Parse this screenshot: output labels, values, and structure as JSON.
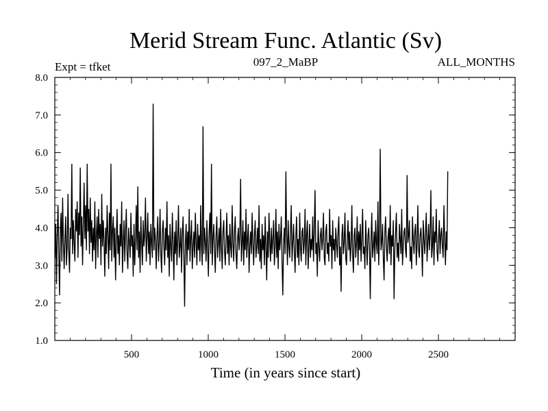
{
  "chart_data": {
    "type": "line",
    "title": "Merid Stream Func. Atlantic (Sv)",
    "annotations": {
      "left": "Expt = tfket",
      "center": "097_2_MaBP",
      "right": "ALL_MONTHS"
    },
    "xlabel": "Time (in years since start)",
    "ylabel": "",
    "xlim": [
      0,
      3000
    ],
    "ylim": [
      1.0,
      8.0
    ],
    "x_ticks": [
      500,
      1000,
      1500,
      2000,
      2500
    ],
    "x_tick_labels": [
      "500",
      "1000",
      "1500",
      "2000",
      "2500"
    ],
    "y_ticks": [
      1,
      2,
      3,
      4,
      5,
      6,
      7,
      8
    ],
    "y_tick_labels": [
      "1.0",
      "2.0",
      "3.0",
      "4.0",
      "5.0",
      "6.0",
      "7.0",
      "8.0"
    ],
    "line_color": "#000000",
    "grid": false,
    "series": [
      {
        "x_start": 1,
        "x_step": 5,
        "values": [
          3.2,
          4.1,
          2.5,
          3.8,
          4.6,
          3.3,
          2.2,
          3.9,
          4.4,
          3.1,
          4.8,
          3.6,
          2.9,
          3.7,
          4.3,
          3.0,
          3.5,
          4.9,
          3.4,
          2.8,
          4.0,
          3.7,
          5.7,
          3.3,
          4.2,
          3.6,
          3.1,
          4.5,
          3.9,
          4.7,
          3.2,
          4.4,
          3.8,
          5.6,
          3.5,
          4.3,
          3.0,
          4.1,
          5.2,
          3.7,
          4.6,
          3.4,
          5.7,
          3.9,
          4.5,
          3.3,
          4.8,
          3.6,
          4.2,
          3.1,
          4.0,
          3.4,
          4.7,
          2.9,
          3.8,
          4.3,
          3.2,
          4.5,
          3.7,
          4.1,
          3.0,
          4.9,
          3.5,
          4.2,
          3.6,
          2.7,
          4.0,
          3.3,
          4.6,
          3.8,
          2.9,
          4.4,
          3.4,
          5.7,
          3.1,
          3.9,
          4.3,
          3.2,
          4.0,
          2.6,
          3.7,
          4.5,
          3.3,
          3.8,
          3.0,
          4.1,
          3.5,
          4.7,
          2.8,
          3.6,
          4.2,
          3.1,
          3.9,
          4.5,
          3.3,
          2.9,
          4.0,
          3.6,
          3.2,
          4.4,
          3.5,
          3.8,
          2.7,
          4.1,
          3.0,
          3.7,
          4.6,
          3.4,
          5.1,
          3.2,
          3.9,
          2.8,
          4.3,
          3.6,
          3.0,
          4.2,
          3.5,
          3.8,
          4.8,
          3.1,
          3.7,
          4.4,
          3.3,
          3.9,
          3.0,
          4.1,
          3.6,
          3.2,
          7.3,
          3.4,
          4.0,
          3.7,
          2.9,
          3.8,
          4.3,
          3.1,
          3.6,
          4.5,
          3.3,
          2.8,
          3.9,
          4.2,
          3.5,
          3.0,
          4.0,
          3.4,
          4.7,
          3.2,
          3.8,
          2.7,
          4.1,
          3.5,
          3.1,
          4.4,
          3.6,
          2.6,
          3.9,
          3.3,
          4.2,
          3.0,
          3.7,
          4.6,
          3.2,
          3.5,
          4.0,
          2.8,
          3.8,
          4.3,
          3.3,
          1.9,
          3.6,
          4.1,
          3.0,
          3.9,
          3.4,
          4.5,
          3.1,
          3.7,
          4.2,
          2.9,
          3.5,
          3.9,
          3.2,
          4.4,
          3.6,
          3.0,
          4.1,
          3.4,
          3.8,
          3.1,
          4.6,
          3.5,
          3.0,
          6.7,
          3.3,
          4.0,
          3.6,
          3.1,
          4.2,
          3.5,
          2.7,
          3.9,
          4.4,
          3.3,
          5.7,
          3.0,
          3.7,
          4.1,
          3.4,
          2.8,
          3.8,
          4.3,
          3.2,
          3.6,
          4.0,
          3.1,
          4.5,
          3.5,
          2.9,
          3.9,
          4.2,
          3.4,
          3.0,
          3.7,
          4.4,
          3.3,
          3.8,
          3.0,
          4.1,
          3.5,
          3.2,
          4.6,
          3.6,
          3.1,
          3.9,
          4.3,
          3.3,
          2.9,
          3.7,
          4.0,
          3.4,
          3.8,
          5.3,
          3.1,
          3.6,
          4.2,
          3.0,
          3.9,
          3.4,
          4.5,
          3.2,
          3.7,
          4.1,
          2.8,
          3.5,
          3.9,
          3.3,
          4.4,
          3.6,
          3.0,
          3.8,
          4.2,
          3.2,
          3.5,
          4.0,
          3.3,
          4.6,
          3.1,
          3.7,
          2.9,
          4.1,
          3.4,
          3.8,
          3.0,
          4.3,
          3.5,
          2.6,
          3.9,
          3.2,
          4.4,
          3.6,
          3.1,
          4.0,
          3.3,
          3.7,
          4.2,
          3.0,
          3.5,
          4.5,
          3.2,
          3.9,
          2.9,
          4.1,
          3.4,
          3.7,
          4.3,
          3.1,
          2.2,
          3.6,
          4.0,
          3.3,
          5.5,
          3.8,
          3.0,
          4.2,
          3.5,
          3.2,
          3.9,
          4.6,
          3.1,
          3.6,
          4.1,
          3.4,
          2.8,
          3.8,
          4.3,
          3.2,
          3.7,
          3.0,
          4.4,
          3.5,
          3.1,
          3.9,
          4.0,
          3.3,
          3.6,
          4.5,
          3.0,
          3.8,
          4.2,
          2.9,
          3.5,
          4.1,
          3.2,
          3.7,
          3.4,
          4.3,
          3.1,
          3.9,
          5.0,
          3.3,
          3.6,
          2.7,
          4.2,
          3.5,
          3.1,
          3.8,
          4.0,
          3.4,
          3.7,
          4.4,
          3.2,
          3.0,
          3.9,
          4.1,
          3.3,
          3.6,
          3.1,
          4.5,
          3.5,
          3.8,
          2.9,
          4.2,
          3.4,
          3.7,
          3.1,
          4.0,
          3.6,
          3.2,
          3.9,
          4.3,
          3.0,
          3.5,
          2.3,
          3.8,
          4.1,
          3.3,
          3.6,
          4.4,
          3.2,
          3.0,
          3.7,
          4.2,
          3.4,
          3.9,
          3.1,
          3.5,
          4.6,
          3.3,
          2.8,
          3.8,
          4.0,
          3.2,
          3.6,
          4.3,
          3.0,
          3.9,
          3.4,
          4.1,
          3.1,
          3.7,
          4.5,
          3.3,
          3.5,
          2.9,
          4.2,
          3.6,
          3.0,
          3.8,
          4.0,
          3.4,
          2.1,
          3.7,
          4.4,
          3.2,
          3.5,
          3.9,
          3.1,
          4.2,
          3.6,
          3.3,
          4.7,
          3.0,
          3.8,
          6.1,
          3.4,
          3.6,
          4.1,
          3.2,
          2.6,
          3.9,
          4.3,
          3.5,
          3.1,
          3.7,
          4.0,
          3.3,
          4.6,
          3.0,
          3.8,
          3.5,
          4.2,
          2.1,
          3.4,
          3.9,
          4.4,
          3.2,
          3.6,
          3.1,
          4.1,
          3.7,
          3.3,
          4.5,
          3.0,
          3.5,
          3.9,
          4.0,
          3.4,
          3.2,
          5.4,
          3.6,
          3.8,
          4.2,
          3.1,
          3.5,
          2.9,
          4.3,
          3.7,
          3.3,
          3.9,
          4.1,
          3.0,
          3.6,
          4.6,
          3.4,
          3.2,
          3.8,
          4.0,
          3.5,
          2.7,
          4.2,
          3.7,
          3.3,
          3.9,
          4.4,
          3.1,
          3.6,
          4.1,
          3.4,
          3.8,
          5.0,
          3.2,
          3.5,
          4.3,
          3.0,
          3.9,
          3.6,
          4.5,
          3.4,
          3.1,
          3.7,
          4.2,
          3.3,
          3.8,
          4.0,
          3.5,
          3.2,
          4.6,
          3.7,
          3.0,
          3.9,
          3.4,
          5.5
        ]
      }
    ]
  }
}
